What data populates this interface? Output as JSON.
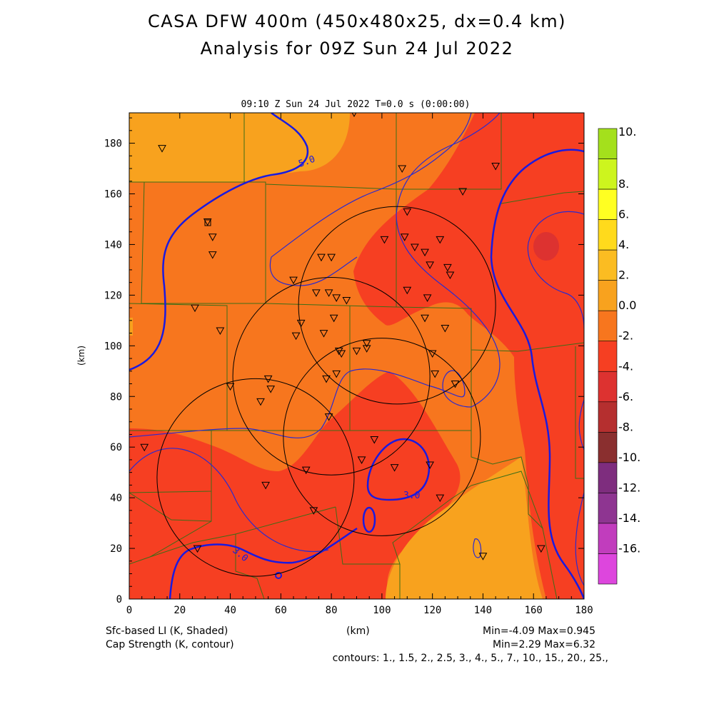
{
  "header": {
    "title_line1": "CASA DFW 400m (450x480x25, dx=0.4 km)",
    "title_line2": "Analysis for 09Z Sun 24 Jul 2022"
  },
  "plot": {
    "subtitle": "09:10 Z Sun 24 Jul 2022    T=0.0 s (0:00:00)",
    "ylabel": "(km)",
    "xlabel": "(km)"
  },
  "chart_data": {
    "type": "heatmap",
    "x_ticks": [
      "0",
      "20",
      "40",
      "60",
      "80",
      "100",
      "120",
      "140",
      "160",
      "180"
    ],
    "y_ticks": [
      "0",
      "20",
      "40",
      "60",
      "80",
      "100",
      "120",
      "140",
      "160",
      "180"
    ],
    "xlim": [
      0,
      180
    ],
    "ylim": [
      0,
      192
    ],
    "colorbar": {
      "levels": [
        "10.",
        "8.",
        "6.",
        "4.",
        "2.",
        "0.0",
        "-2.",
        "-4.",
        "-6.",
        "-8.",
        "-10.",
        "-12.",
        "-14.",
        "-16."
      ],
      "colors": [
        "#a4e01c",
        "#cdf51e",
        "#ffff22",
        "#ffda1c",
        "#fbbc22",
        "#f8a21e",
        "#f7761e",
        "#f63f22",
        "#dd3230",
        "#b52f2f",
        "#8a2f2f",
        "#7e2d7e",
        "#8e3591",
        "#c13dbd",
        "#dd46dd"
      ]
    },
    "contour_labels": [
      "5.0",
      "3.0",
      "3.0"
    ],
    "radar_circles_km": [
      {
        "cx": 106,
        "cy": 116,
        "r": 39
      },
      {
        "cx": 80,
        "cy": 88,
        "r": 39
      },
      {
        "cx": 100,
        "cy": 64,
        "r": 39
      },
      {
        "cx": 50,
        "cy": 48,
        "r": 39
      }
    ],
    "stations_km": [
      [
        13,
        178
      ],
      [
        89,
        192
      ],
      [
        108,
        170
      ],
      [
        145,
        171
      ],
      [
        132,
        161
      ],
      [
        31,
        149
      ],
      [
        33,
        143
      ],
      [
        33,
        136
      ],
      [
        101,
        142
      ],
      [
        110,
        153
      ],
      [
        109,
        143
      ],
      [
        113,
        139
      ],
      [
        117,
        137
      ],
      [
        123,
        142
      ],
      [
        119,
        132
      ],
      [
        126,
        131
      ],
      [
        127,
        128
      ],
      [
        65,
        126
      ],
      [
        76,
        135
      ],
      [
        80,
        135
      ],
      [
        79,
        121
      ],
      [
        74,
        121
      ],
      [
        82,
        119
      ],
      [
        86,
        118
      ],
      [
        110,
        122
      ],
      [
        118,
        119
      ],
      [
        26,
        115
      ],
      [
        36,
        106
      ],
      [
        68,
        109
      ],
      [
        66,
        104
      ],
      [
        77,
        105
      ],
      [
        81,
        111
      ],
      [
        117,
        111
      ],
      [
        125,
        107
      ],
      [
        83,
        98
      ],
      [
        84,
        97
      ],
      [
        90,
        98
      ],
      [
        94,
        99
      ],
      [
        94,
        101
      ],
      [
        120,
        97
      ],
      [
        121,
        89
      ],
      [
        129,
        85
      ],
      [
        82,
        89
      ],
      [
        78,
        87
      ],
      [
        40,
        84
      ],
      [
        55,
        87
      ],
      [
        56,
        83
      ],
      [
        52,
        78
      ],
      [
        79,
        72
      ],
      [
        97,
        63
      ],
      [
        6,
        60
      ],
      [
        70,
        51
      ],
      [
        92,
        55
      ],
      [
        105,
        52
      ],
      [
        119,
        53
      ],
      [
        123,
        40
      ],
      [
        54,
        45
      ],
      [
        73,
        35
      ],
      [
        27,
        20
      ],
      [
        140,
        17
      ],
      [
        163,
        20
      ]
    ],
    "footer_left_1": "Sfc-based LI (K, Shaded)",
    "footer_left_2": "Cap Strength (K, contour)",
    "footer_center": "(km)",
    "footer_right_1": "Min=-4.09 Max=0.945",
    "footer_right_2": "Min=2.29 Max=6.32",
    "footer_contours": "contours: 1., 1.5, 2., 2.5, 3., 4., 5., 7., 10., 15., 20., 25.,"
  }
}
